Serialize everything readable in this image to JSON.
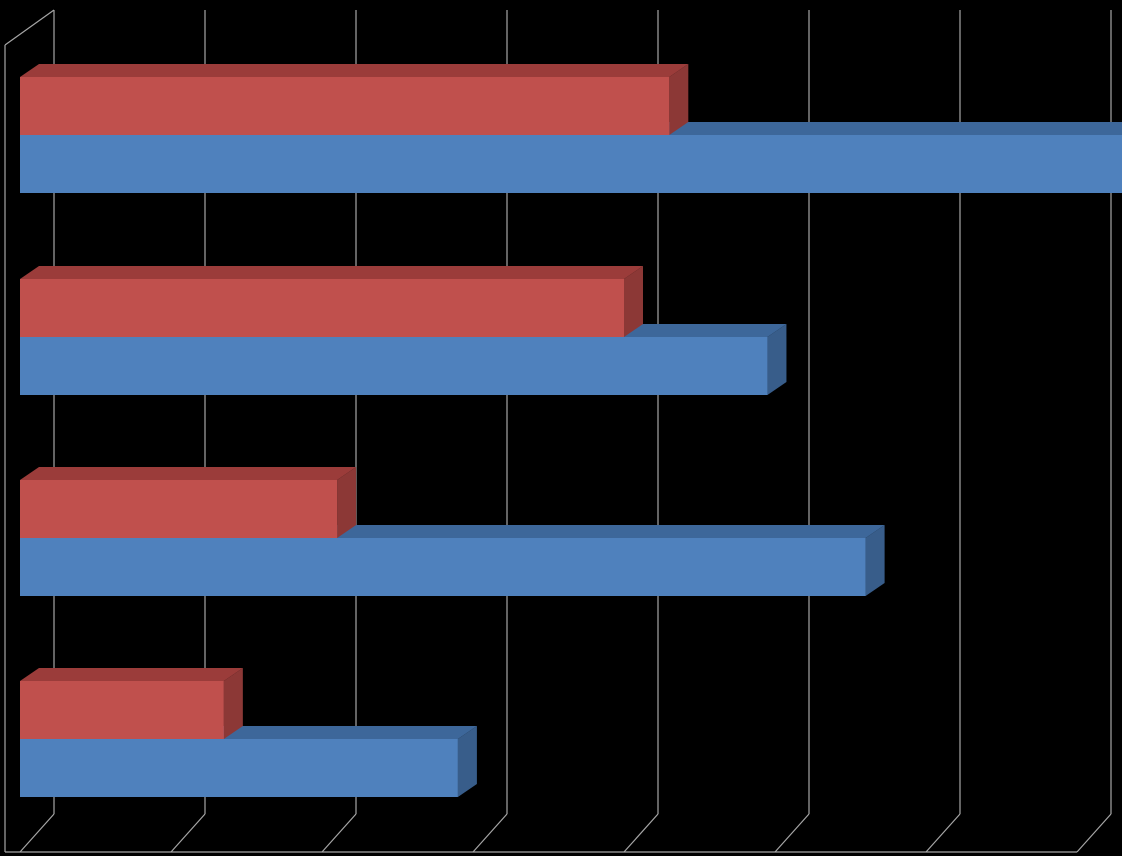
{
  "chart_data": {
    "type": "bar",
    "orientation": "horizontal",
    "style": "3d-clustered",
    "categories": [
      "",
      "",
      "",
      ""
    ],
    "series": [
      {
        "values": [
          7.35,
          4.95,
          5.6,
          2.9
        ],
        "color": "#4F81BD",
        "side_color": "#385D8A",
        "top_color": "#3D679A"
      },
      {
        "values": [
          4.3,
          4.0,
          2.1,
          1.35
        ],
        "color": "#C0504D",
        "side_color": "#8C3836",
        "top_color": "#9B3C3A"
      }
    ],
    "xlim": [
      0,
      7
    ],
    "x_gridline_step": 1,
    "grid": true,
    "legend": "none",
    "background": "#000000",
    "gridline_color": "#A6A6A6"
  }
}
